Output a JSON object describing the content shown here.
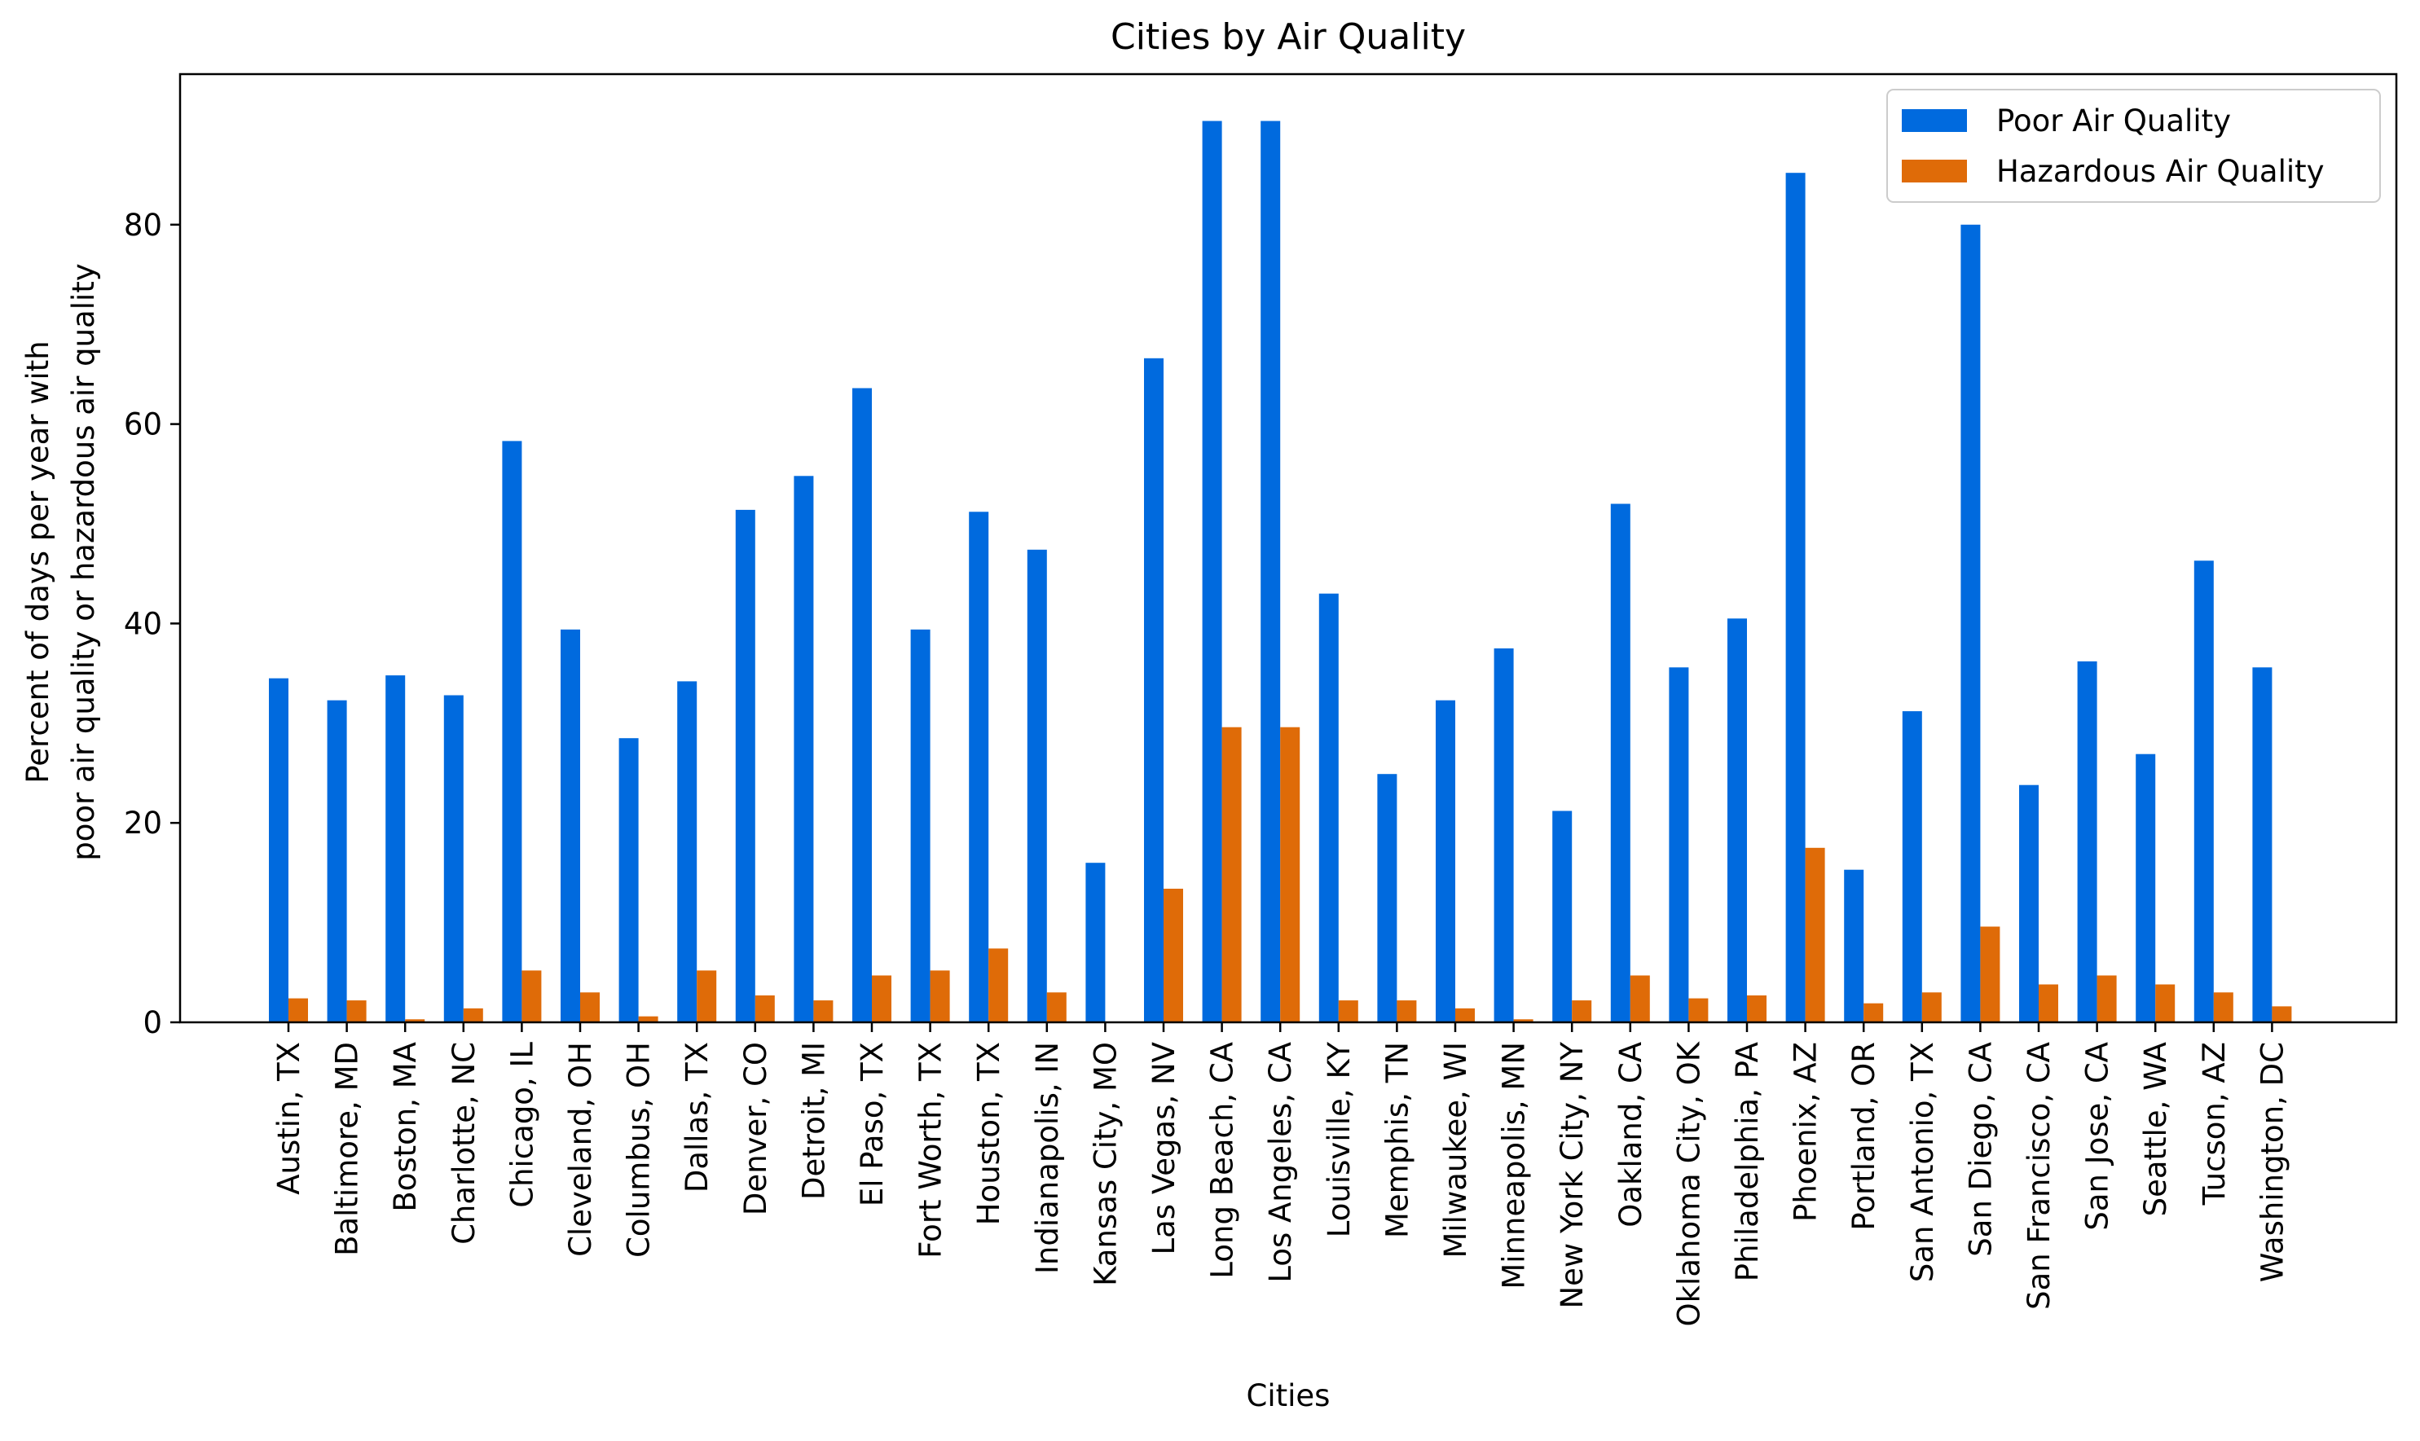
{
  "chart_data": {
    "type": "bar",
    "title": "Cities by Air Quality",
    "xlabel": "Cities",
    "ylabel": [
      "Percent of days per year with",
      "poor air quality or hazardous air quality"
    ],
    "ylim": [
      0,
      95
    ],
    "yticks": [
      0,
      20,
      40,
      60,
      80
    ],
    "grid": false,
    "legend_position": "top-right",
    "categories": [
      "Austin, TX",
      "Baltimore, MD",
      "Boston, MA",
      "Charlotte, NC",
      "Chicago, IL",
      "Cleveland, OH",
      "Columbus, OH",
      "Dallas, TX",
      "Denver, CO",
      "Detroit, MI",
      "El Paso, TX",
      "Fort Worth, TX",
      "Houston, TX",
      "Indianapolis, IN",
      "Kansas City, MO",
      "Las Vegas, NV",
      "Long Beach, CA",
      "Los Angeles, CA",
      "Louisville, KY",
      "Memphis, TN",
      "Milwaukee, WI",
      "Minneapolis, MN",
      "New York City, NY",
      "Oakland, CA",
      "Oklahoma City, OK",
      "Philadelphia, PA",
      "Phoenix, AZ",
      "Portland, OR",
      "San Antonio, TX",
      "San Diego, CA",
      "San Francisco, CA",
      "San Jose, CA",
      "Seattle, WA",
      "Tucson, AZ",
      "Washington, DC"
    ],
    "series": [
      {
        "name": "Poor Air Quality",
        "color": "#006ade",
        "values": [
          34.5,
          32.3,
          34.8,
          32.8,
          58.3,
          39.4,
          28.5,
          34.2,
          51.4,
          54.8,
          63.6,
          39.4,
          51.2,
          47.4,
          16.0,
          66.6,
          90.4,
          90.4,
          43.0,
          24.9,
          32.3,
          37.5,
          21.2,
          52.0,
          35.6,
          40.5,
          85.2,
          15.3,
          31.2,
          80.0,
          23.8,
          36.2,
          26.9,
          46.3,
          35.6
        ]
      },
      {
        "name": "Hazardous Air Quality",
        "color": "#df6b08",
        "values": [
          2.4,
          2.2,
          0.3,
          1.4,
          5.2,
          3.0,
          0.6,
          5.2,
          2.7,
          2.2,
          4.7,
          5.2,
          7.4,
          3.0,
          0.0,
          13.4,
          29.6,
          29.6,
          2.2,
          2.2,
          1.4,
          0.3,
          2.2,
          4.7,
          2.4,
          2.7,
          17.5,
          1.9,
          3.0,
          9.6,
          3.8,
          4.7,
          3.8,
          3.0,
          1.6
        ]
      }
    ]
  }
}
